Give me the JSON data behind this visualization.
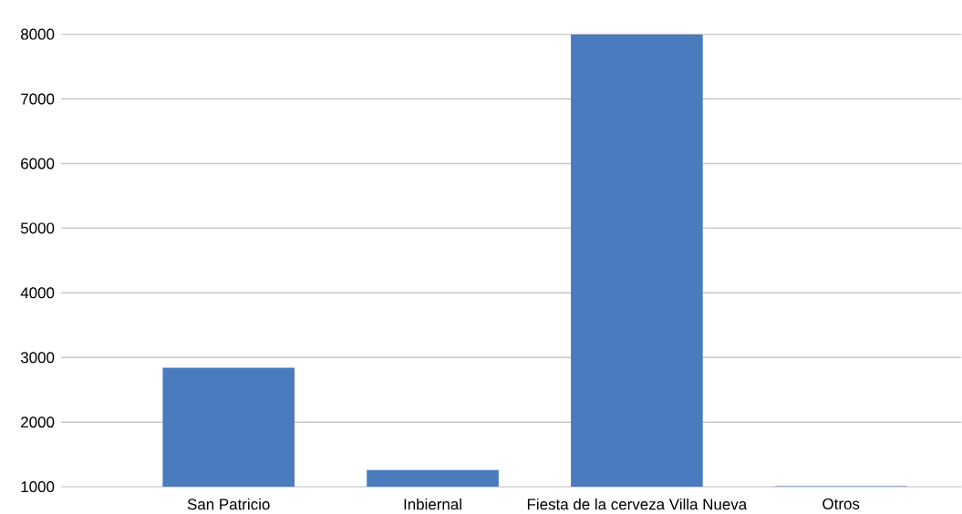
{
  "chart_data": {
    "type": "bar",
    "categories": [
      "San Patricio",
      "Inbiernal",
      "Fiesta de la cerveza Villa Nueva",
      "Otros"
    ],
    "values": [
      2840,
      1260,
      8000,
      1010
    ],
    "color": "#4a7bbf",
    "ylim": [
      1000,
      8000
    ],
    "yticks": [
      1000,
      2000,
      3000,
      4000,
      5000,
      6000,
      7000,
      8000
    ],
    "grid": "y"
  }
}
